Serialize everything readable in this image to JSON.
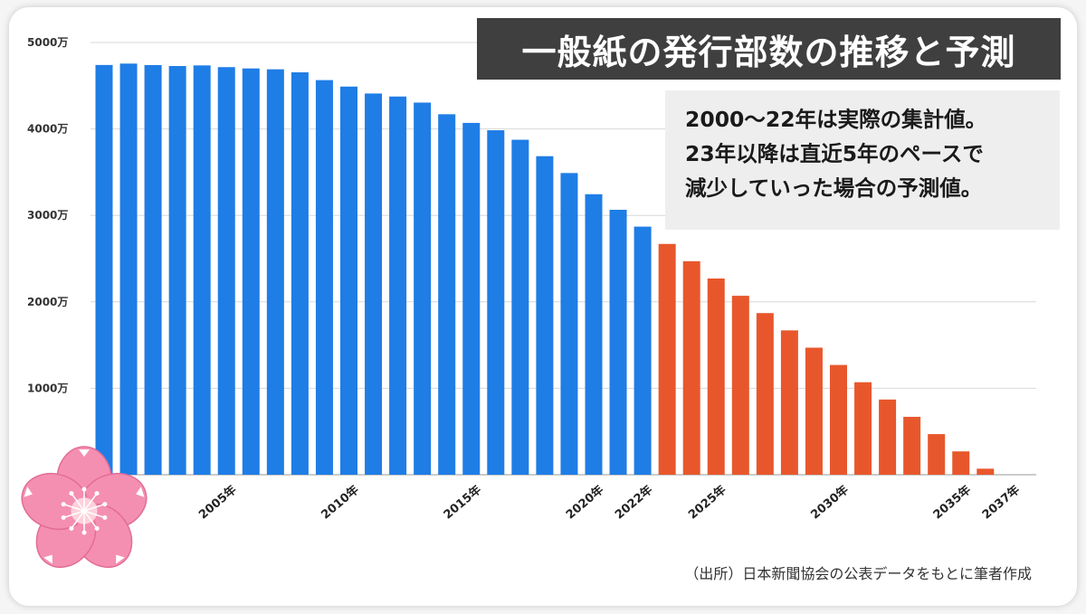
{
  "chart_data": {
    "type": "bar",
    "title": "一般紙の発行部数の推移と予測",
    "annotation": [
      "2000〜22年は実際の集計値。",
      "23年以降は直近5年のペースで",
      "減少していった場合の予測値。"
    ],
    "source": "（出所）日本新聞協会の公表データをもとに筆者作成",
    "ylim": [
      0,
      5000
    ],
    "yticks": [
      {
        "value": 1000,
        "label": "1000万"
      },
      {
        "value": 2000,
        "label": "2000万"
      },
      {
        "value": 3000,
        "label": "3000万"
      },
      {
        "value": 4000,
        "label": "4000万"
      },
      {
        "value": 5000,
        "label": "5000万"
      }
    ],
    "grid": true,
    "x_tick_labels": [
      {
        "year": 2005,
        "label": "2005年"
      },
      {
        "year": 2010,
        "label": "2010年"
      },
      {
        "year": 2015,
        "label": "2015年"
      },
      {
        "year": 2020,
        "label": "2020年"
      },
      {
        "year": 2022,
        "label": "2022年"
      },
      {
        "year": 2025,
        "label": "2025年"
      },
      {
        "year": 2030,
        "label": "2030年"
      },
      {
        "year": 2035,
        "label": "2035年"
      },
      {
        "year": 2037,
        "label": "2037年"
      }
    ],
    "series": [
      {
        "color": "#1f7de6",
        "x": [
          2000,
          2001,
          2002,
          2003,
          2004,
          2005,
          2006,
          2007,
          2008,
          2009,
          2010,
          2011,
          2012,
          2013,
          2014,
          2015,
          2016,
          2017,
          2018,
          2019,
          2020,
          2021,
          2022
        ],
        "values": [
          4740,
          4756,
          4739,
          4728,
          4735,
          4715,
          4700,
          4690,
          4655,
          4565,
          4490,
          4410,
          4375,
          4305,
          4170,
          4070,
          3985,
          3875,
          3685,
          3490,
          3245,
          3065,
          2870
        ]
      },
      {
        "color": "#e8572c",
        "x": [
          2023,
          2024,
          2025,
          2026,
          2027,
          2028,
          2029,
          2030,
          2031,
          2032,
          2033,
          2034,
          2035,
          2036,
          2037
        ],
        "values": [
          2670,
          2470,
          2270,
          2070,
          1870,
          1670,
          1470,
          1270,
          1070,
          870,
          670,
          470,
          270,
          70,
          0
        ]
      }
    ]
  },
  "colors": {
    "title_bg": "#3f3f3f",
    "note_bg": "#eeeeee",
    "flower": "#f48fb1"
  }
}
